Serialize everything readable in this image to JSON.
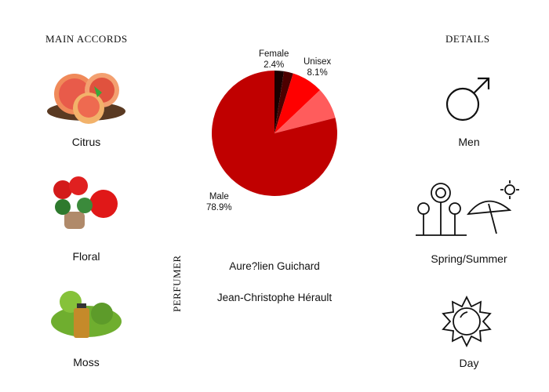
{
  "accords": {
    "title": "MAIN ACCORDS",
    "items": [
      {
        "label": "Citrus"
      },
      {
        "label": "Floral"
      },
      {
        "label": "Moss"
      }
    ]
  },
  "details": {
    "title": "DETAILS",
    "items": [
      {
        "label": "Men",
        "icon": "male-symbol-icon"
      },
      {
        "label": "Spring/Summer",
        "icon": "flowers-umbrella-sun-icon"
      },
      {
        "label": "Day",
        "icon": "sun-icon"
      }
    ]
  },
  "perfumer": {
    "title": "PERFUMER",
    "names": [
      "Aure?lien Guichard",
      "Jean-Christophe Hérault"
    ]
  },
  "chart_data": {
    "type": "pie",
    "slices": [
      {
        "name": "Female",
        "value": 2.4,
        "label": "2.4%",
        "color": "#1a0000"
      },
      {
        "name": "",
        "value": 2.4,
        "color": "#4d0000"
      },
      {
        "name": "Unisex",
        "value": 8.1,
        "label": "8.1%",
        "color": "#ff0000"
      },
      {
        "name": "",
        "value": 8.1,
        "color": "#ff5c5c"
      },
      {
        "name": "Male",
        "value": 78.9,
        "label": "78.9%",
        "color": "#c00000"
      }
    ]
  }
}
